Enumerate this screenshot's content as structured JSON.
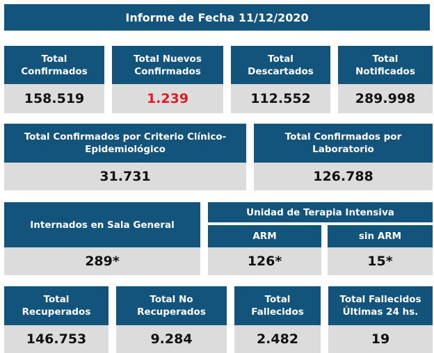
{
  "title": "Informe de Fecha 11/12/2020",
  "row1": [
    {
      "label": "Total\nConfirmados",
      "value": "158.519"
    },
    {
      "label": "Total Nuevos\nConfirmados",
      "value": "1.239"
    },
    {
      "label": "Total\nDescartados",
      "value": "112.552"
    },
    {
      "label": "Total\nNotificados",
      "value": "289.998"
    }
  ],
  "row2": [
    {
      "label": "Total Confirmados por Criterio Clínico-\nEpidemiológico",
      "value": "31.731"
    },
    {
      "label": "Total Confirmados por\nLaboratorio",
      "value": "126.788"
    }
  ],
  "row3": {
    "sala_general": {
      "label": "Internados en Sala General",
      "value": "289*"
    },
    "uti_banner": "Unidad de Terapia Intensiva",
    "arm": {
      "label": "ARM",
      "value": "126*"
    },
    "sin_arm": {
      "label": "sin ARM",
      "value": "15*"
    }
  },
  "row4": [
    {
      "label": "Total\nRecuperados",
      "value": "146.753"
    },
    {
      "label": "Total No\nRecuperados",
      "value": "9.284"
    },
    {
      "label": "Total\nFallecidos",
      "value": "2.482"
    },
    {
      "label": "Total Fallecidos\nÚltimas 24 hs.",
      "value": "19"
    }
  ],
  "colors": {
    "header_blue": "#13547d",
    "value_gray": "#dcdcdc",
    "highlight_red": "#e01b22"
  }
}
